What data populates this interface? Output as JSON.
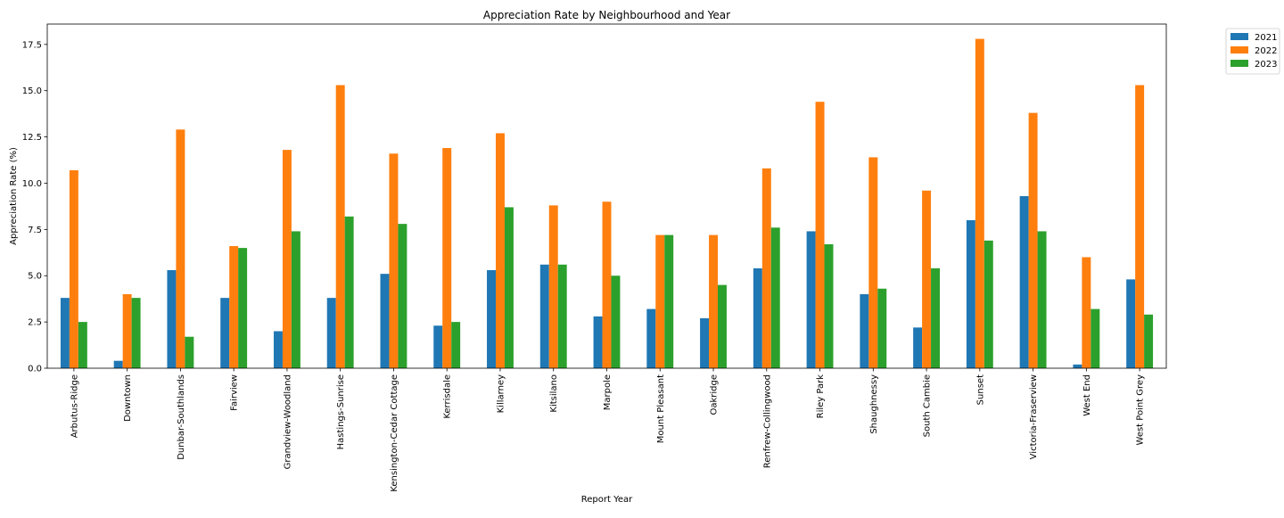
{
  "chart_data": {
    "type": "bar",
    "title": "Appreciation Rate by Neighbourhood and Year",
    "xlabel": "Report Year",
    "ylabel": "Appreciation Rate (%)",
    "ylim": [
      0,
      18.6
    ],
    "yticks": [
      "0.0",
      "2.5",
      "5.0",
      "7.5",
      "10.0",
      "12.5",
      "15.0",
      "17.5"
    ],
    "grid": false,
    "legend_position": "outside-top-right",
    "categories": [
      "Arbutus-Ridge",
      "Downtown",
      "Dunbar-Southlands",
      "Fairview",
      "Grandview-Woodland",
      "Hastings-Sunrise",
      "Kensington-Cedar Cottage",
      "Kerrisdale",
      "Killarney",
      "Kitsilano",
      "Marpole",
      "Mount Pleasant",
      "Oakridge",
      "Renfrew-Collingwood",
      "Riley Park",
      "Shaughnessy",
      "South Cambie",
      "Sunset",
      "Victoria-Fraserview",
      "West End",
      "West Point Grey"
    ],
    "series": [
      {
        "name": "2021",
        "color": "#1f77b4",
        "values": [
          3.8,
          0.4,
          5.3,
          3.8,
          2.0,
          3.8,
          5.1,
          2.3,
          5.3,
          5.6,
          2.8,
          3.2,
          2.7,
          5.4,
          7.4,
          4.0,
          2.2,
          8.0,
          9.3,
          0.2,
          4.8
        ]
      },
      {
        "name": "2022",
        "color": "#ff7f0e",
        "values": [
          10.7,
          4.0,
          12.9,
          6.6,
          11.8,
          15.3,
          11.6,
          11.9,
          12.7,
          8.8,
          9.0,
          7.2,
          7.2,
          10.8,
          14.4,
          11.4,
          9.6,
          17.8,
          13.8,
          6.0,
          15.3
        ]
      },
      {
        "name": "2023",
        "color": "#2ca02c",
        "values": [
          2.5,
          3.8,
          1.7,
          6.5,
          7.4,
          8.2,
          7.8,
          2.5,
          8.7,
          5.6,
          5.0,
          7.2,
          4.5,
          7.6,
          6.7,
          4.3,
          5.4,
          6.9,
          7.4,
          3.2,
          2.9
        ]
      }
    ]
  }
}
